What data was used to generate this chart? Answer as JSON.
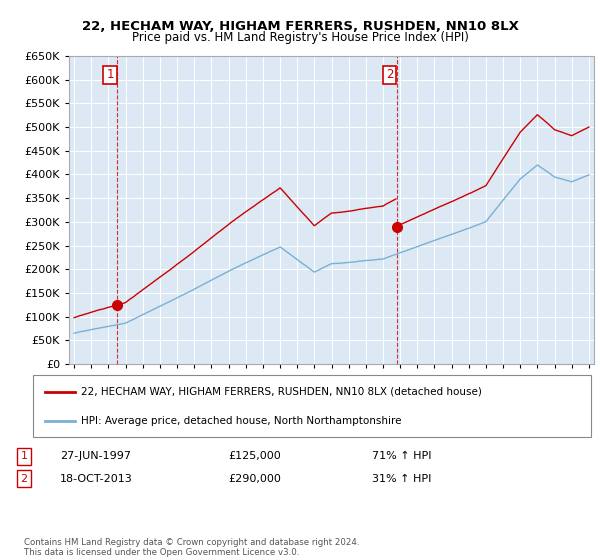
{
  "title": "22, HECHAM WAY, HIGHAM FERRERS, RUSHDEN, NN10 8LX",
  "subtitle": "Price paid vs. HM Land Registry's House Price Index (HPI)",
  "sale1_date": "27-JUN-1997",
  "sale1_price": 125000,
  "sale1_hpi": "71% ↑ HPI",
  "sale2_date": "18-OCT-2013",
  "sale2_price": 290000,
  "sale2_hpi": "31% ↑ HPI",
  "legend_line1": "22, HECHAM WAY, HIGHAM FERRERS, RUSHDEN, NN10 8LX (detached house)",
  "legend_line2": "HPI: Average price, detached house, North Northamptonshire",
  "footnote": "Contains HM Land Registry data © Crown copyright and database right 2024.\nThis data is licensed under the Open Government Licence v3.0.",
  "red_color": "#cc0000",
  "blue_color": "#7ab0d4",
  "plot_bg_color": "#dce9f5",
  "grid_color": "#ffffff",
  "ylim": [
    0,
    650000
  ],
  "yticks": [
    0,
    50000,
    100000,
    150000,
    200000,
    250000,
    300000,
    350000,
    400000,
    450000,
    500000,
    550000,
    600000,
    650000
  ],
  "sale1_x_year": 1997.49,
  "sale1_y": 125000,
  "sale2_x_year": 2013.79,
  "sale2_y": 290000,
  "xlim_left": 1994.7,
  "xlim_right": 2025.3
}
